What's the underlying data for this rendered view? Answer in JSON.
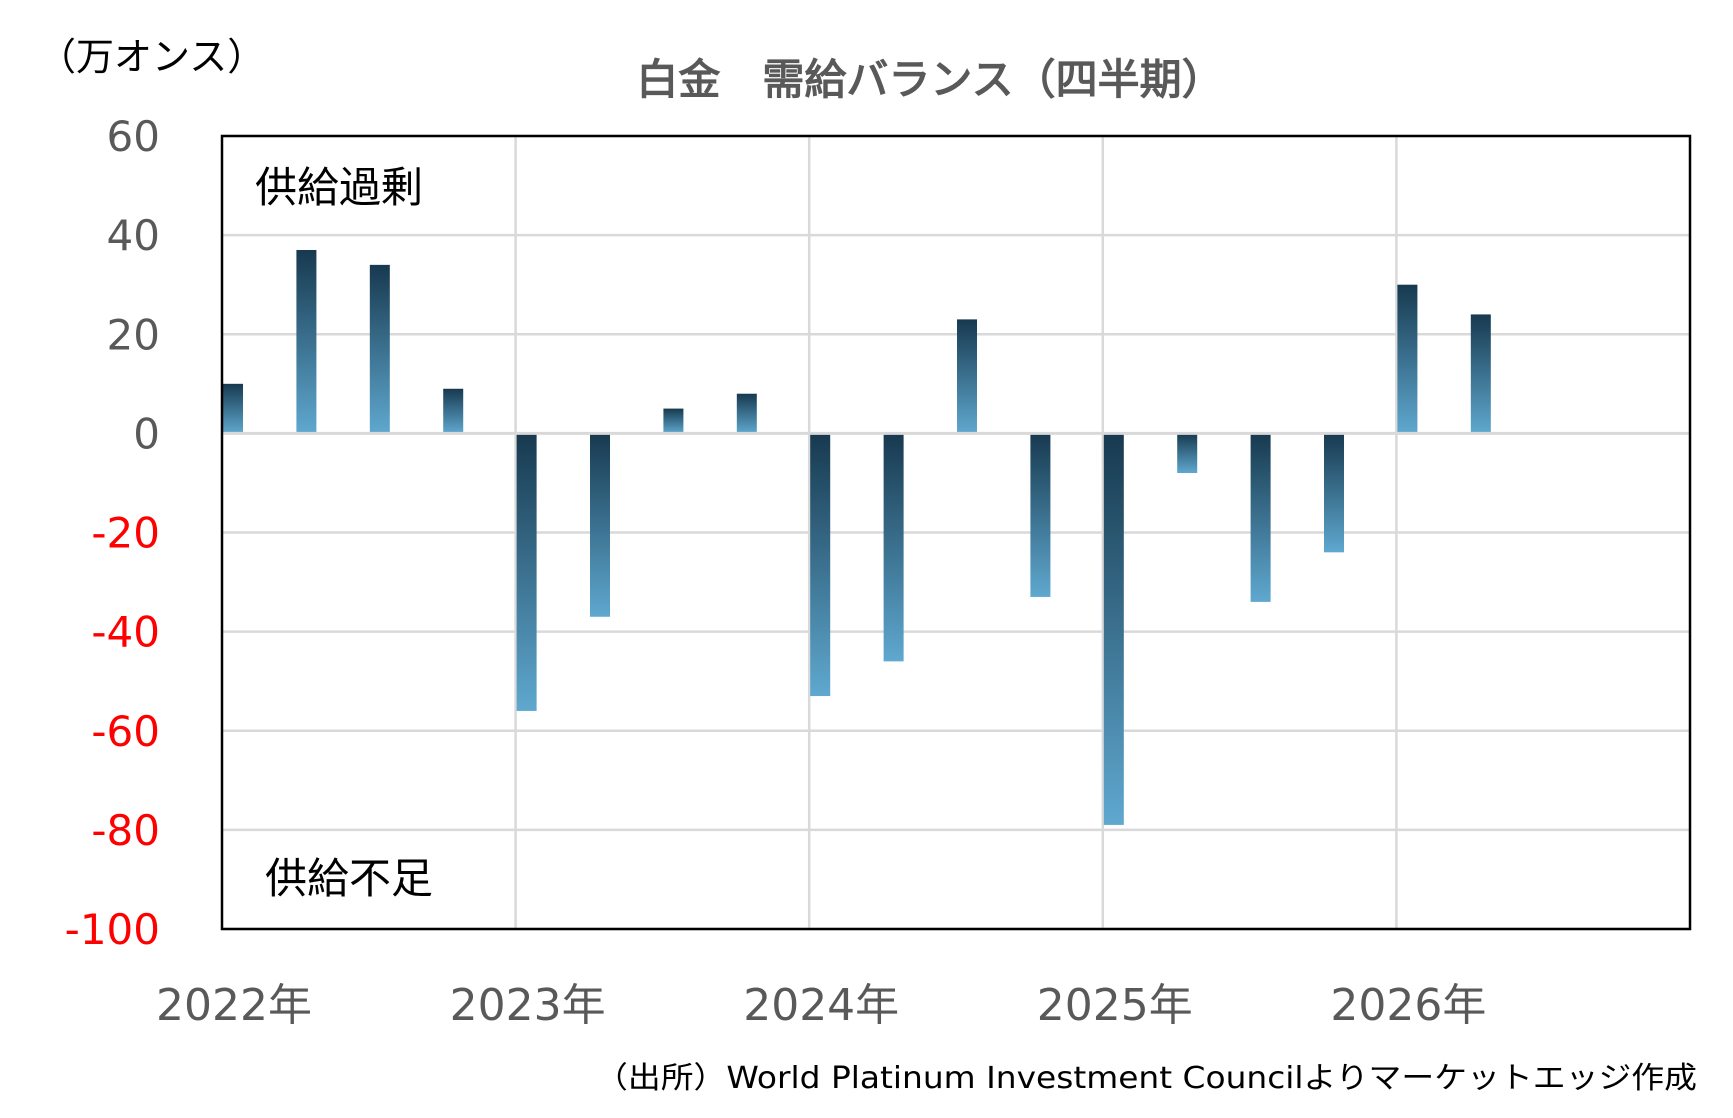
{
  "chart_data": {
    "type": "bar",
    "title": "白金　需給バランス（四半期）",
    "ylabel": "（万オンス）",
    "ylim": [
      -100,
      60
    ],
    "yticks": [
      60,
      40,
      20,
      0,
      -20,
      -40,
      -60,
      -80,
      -100
    ],
    "year_labels": [
      "2022年",
      "2023年",
      "2024年",
      "2025年",
      "2026年"
    ],
    "quarters_per_year": 4,
    "categories": [
      "2022Q1",
      "2022Q2",
      "2022Q3",
      "2022Q4",
      "2023Q1",
      "2023Q2",
      "2023Q3",
      "2023Q4",
      "2024Q1",
      "2024Q2",
      "2024Q3",
      "2024Q4",
      "2025Q1",
      "2025Q2",
      "2025Q3",
      "2025Q4",
      "2026Q1",
      "2026Q2"
    ],
    "values": [
      10,
      37,
      34,
      9,
      -56,
      -37,
      5,
      8,
      -53,
      -46,
      23,
      -33,
      -79,
      -8,
      -34,
      -24,
      30,
      24
    ],
    "grid": true,
    "annotations": [
      "供給過剰",
      "供給不足"
    ],
    "colors": {
      "bar_dark": "#17394f",
      "bar_light": "#5fa8cf",
      "negative_tick": "#ff0000",
      "tick": "#595959",
      "grid": "#d9d9d9"
    }
  },
  "source": "（出所）World Platinum Investment Councilよりマーケットエッジ作成"
}
